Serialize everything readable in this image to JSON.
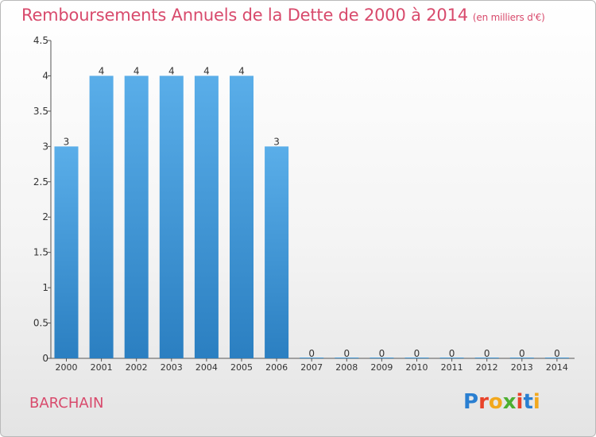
{
  "title": "Remboursements Annuels de la Dette de 2000 à 2014",
  "subtitle": "(en milliers d'€)",
  "location": "BARCHAIN",
  "logo": {
    "text": "Proxiti"
  },
  "colors": {
    "title": "#d84a6c",
    "bar_top": "#5aaee9",
    "bar_bottom": "#2b7fc1"
  },
  "chart_data": {
    "type": "bar",
    "title": "Remboursements Annuels de la Dette de 2000 à 2014",
    "subtitle": "(en milliers d'€)",
    "xlabel": "",
    "ylabel": "",
    "categories": [
      "2000",
      "2001",
      "2002",
      "2003",
      "2004",
      "2005",
      "2006",
      "2007",
      "2008",
      "2009",
      "2010",
      "2011",
      "2012",
      "2013",
      "2014"
    ],
    "values": [
      3,
      4,
      4,
      4,
      4,
      4,
      3,
      0,
      0,
      0,
      0,
      0,
      0,
      0,
      0
    ],
    "data_labels": [
      "3",
      "4",
      "4",
      "4",
      "4",
      "4",
      "3",
      "0",
      "0",
      "0",
      "0",
      "0",
      "0",
      "0",
      "0"
    ],
    "yticks": [
      "0",
      "0.5",
      "1",
      "1.5",
      "2",
      "2.5",
      "3",
      "3.5",
      "4",
      "4.5"
    ],
    "ylim": [
      0,
      4.5
    ],
    "grid": false,
    "legend": "none"
  }
}
